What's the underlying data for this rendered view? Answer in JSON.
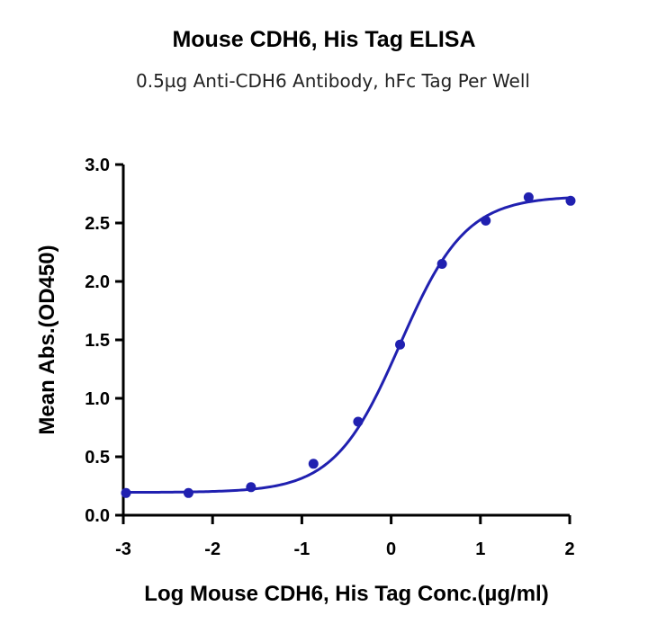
{
  "chart_data": {
    "type": "scatter",
    "title": "Mouse CDH6, His Tag ELISA",
    "subtitle": "0.5µg Anti-CDH6 Antibody, hFc Tag Per Well",
    "xlabel": "Log Mouse CDH6, His Tag Conc.(µg/ml)",
    "ylabel": "Mean Abs.(OD450)",
    "xlim": [
      -3,
      2
    ],
    "ylim": [
      0,
      3
    ],
    "x_ticks": [
      "-3",
      "-2",
      "-1",
      "0",
      "1",
      "2"
    ],
    "y_ticks": [
      "0.0",
      "0.5",
      "1.0",
      "1.5",
      "2.0",
      "2.5",
      "3.0"
    ],
    "grid": false,
    "color": "#2020b0",
    "series": [
      {
        "points": [
          {
            "x": -2.97,
            "y": 0.19
          },
          {
            "x": -2.27,
            "y": 0.19
          },
          {
            "x": -1.57,
            "y": 0.24
          },
          {
            "x": -0.87,
            "y": 0.44
          },
          {
            "x": -0.37,
            "y": 0.8
          },
          {
            "x": 0.1,
            "y": 1.46
          },
          {
            "x": 0.57,
            "y": 2.15
          },
          {
            "x": 1.06,
            "y": 2.52
          },
          {
            "x": 1.54,
            "y": 2.72
          },
          {
            "x": 2.01,
            "y": 2.69
          }
        ],
        "fit": {
          "model": "4PL",
          "bottom": 0.195,
          "top": 2.73,
          "logEC50": 0.1,
          "hill": 1.18
        }
      }
    ]
  }
}
